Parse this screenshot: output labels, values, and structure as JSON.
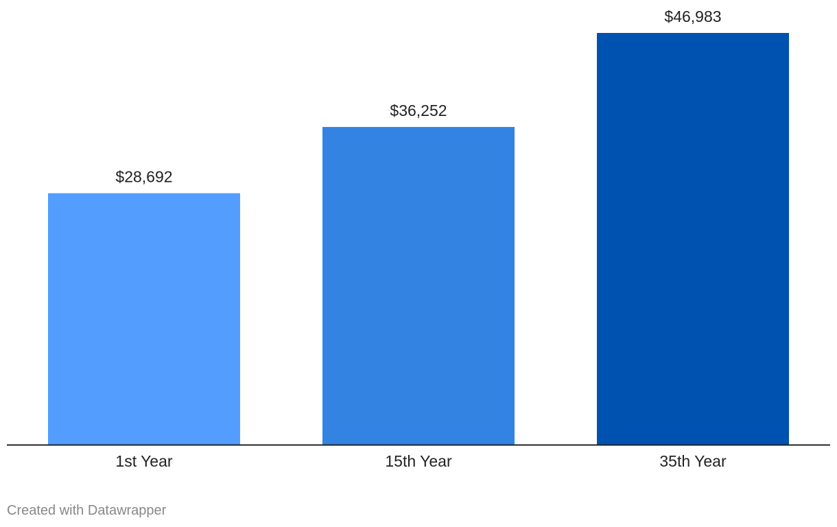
{
  "chart_data": {
    "type": "bar",
    "title": "",
    "xlabel": "",
    "ylabel": "",
    "categories": [
      "1st Year",
      "15th Year",
      "35th Year"
    ],
    "values": [
      28692,
      36252,
      46983
    ],
    "value_labels": [
      "$28,692",
      "$36,252",
      "$46,983"
    ],
    "colors": [
      "#529dff",
      "#3383e3",
      "#0052b0"
    ],
    "ylim": [
      0,
      46983
    ],
    "grid": false,
    "legend": "none"
  },
  "footer": {
    "credit": "Created with Datawrapper"
  }
}
